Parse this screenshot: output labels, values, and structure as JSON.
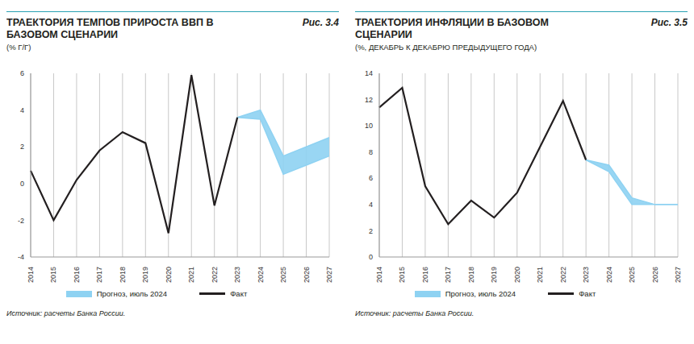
{
  "chart_data": [
    {
      "type": "line",
      "title": "ТРАЕКТОРИЯ ТЕМПОВ ПРИРОСТА ВВП В БАЗОВОМ СЦЕНАРИИ",
      "figure": "Рис. 3.4",
      "subtitle": "(% Г/Г)",
      "source": "Источник: расчеты Банка России.",
      "categories": [
        "2014",
        "2015",
        "2016",
        "2017",
        "2018",
        "2019",
        "2020",
        "2021",
        "2022",
        "2023",
        "2024",
        "2025",
        "2026",
        "2027"
      ],
      "series": [
        {
          "name": "Прогноз, июль 2024",
          "type": "range",
          "color": "#8ed2f2",
          "values": [
            null,
            null,
            null,
            null,
            null,
            null,
            null,
            null,
            null,
            [
              3.6,
              3.6
            ],
            [
              3.5,
              4.0
            ],
            [
              0.5,
              1.5
            ],
            [
              1.0,
              2.0
            ],
            [
              1.5,
              2.5
            ]
          ]
        },
        {
          "name": "Факт",
          "type": "line",
          "color": "#231f20",
          "values": [
            0.7,
            -2.0,
            0.2,
            1.8,
            2.8,
            2.2,
            -2.7,
            5.9,
            -1.2,
            3.6,
            null,
            null,
            null,
            null
          ]
        }
      ],
      "ylim": [
        -4,
        6
      ],
      "yticks": [
        -4,
        -2,
        0,
        2,
        4,
        6
      ],
      "grid": true,
      "legend": "bottom"
    },
    {
      "type": "line",
      "title": "ТРАЕКТОРИЯ ИНФЛЯЦИИ В БАЗОВОМ СЦЕНАРИИ",
      "figure": "Рис. 3.5",
      "subtitle": "(%, ДЕКАБРЬ К ДЕКАБРЮ ПРЕДЫДУЩЕГО ГОДА)",
      "source": "Источник: расчеты Банка России.",
      "categories": [
        "2014",
        "2015",
        "2016",
        "2017",
        "2018",
        "2019",
        "2020",
        "2021",
        "2022",
        "2023",
        "2024",
        "2025",
        "2026",
        "2027"
      ],
      "series": [
        {
          "name": "Прогноз, июль 2024",
          "type": "range",
          "color": "#8ed2f2",
          "values": [
            null,
            null,
            null,
            null,
            null,
            null,
            null,
            null,
            null,
            [
              7.4,
              7.4
            ],
            [
              6.5,
              7.0
            ],
            [
              4.0,
              4.5
            ],
            [
              4.0,
              4.0
            ],
            [
              4.0,
              4.0
            ]
          ]
        },
        {
          "name": "Факт",
          "type": "line",
          "color": "#231f20",
          "values": [
            11.4,
            12.9,
            5.4,
            2.5,
            4.3,
            3.0,
            4.9,
            8.4,
            11.9,
            7.4,
            null,
            null,
            null,
            null
          ]
        }
      ],
      "ylim": [
        0,
        14
      ],
      "yticks": [
        0,
        2,
        4,
        6,
        8,
        10,
        12,
        14
      ],
      "grid": true,
      "legend": "bottom"
    }
  ]
}
